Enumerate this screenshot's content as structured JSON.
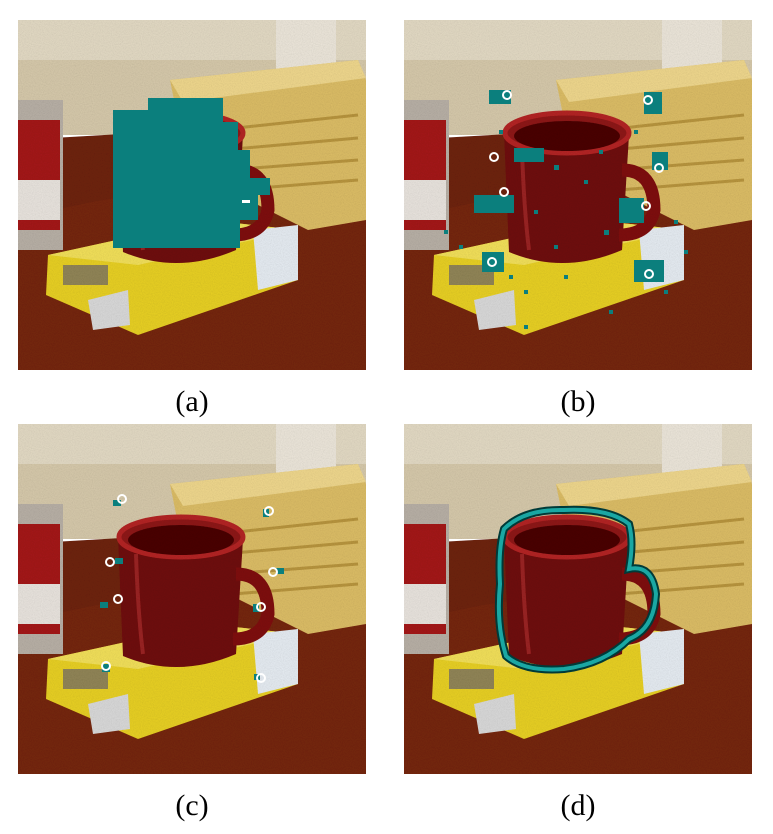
{
  "panels": [
    {
      "id": "a",
      "caption": "(a)"
    },
    {
      "id": "b",
      "caption": "(b)"
    },
    {
      "id": "c",
      "caption": "(c)"
    },
    {
      "id": "d",
      "caption": "(d)"
    }
  ],
  "colors": {
    "overlay_teal": "#0b7f7d",
    "outline_teal": "#1aa7a3",
    "mug_red": "#7a0a0a",
    "table_brown": "#6b1d0a",
    "box_yellow": "#e9d12a",
    "wood_block": "#e5c76c",
    "wall": "#d9cfb4"
  },
  "icons": [
    "keypoint-marker-icon"
  ]
}
